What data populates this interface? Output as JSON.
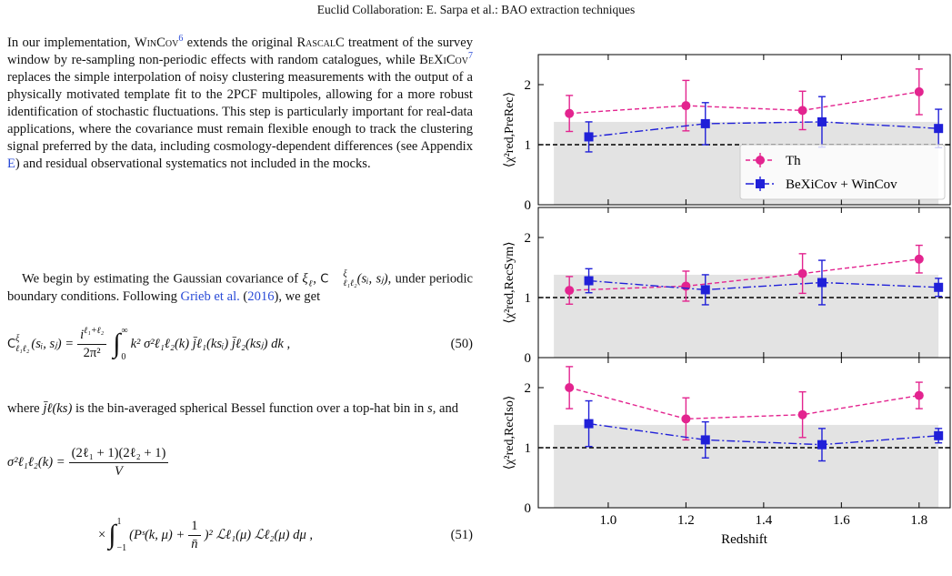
{
  "header": "Euclid Collaboration: E. Sarpa et al.: BAO extraction techniques",
  "paragraph1": [
    "In our implementation, ",
    "WinCov",
    "6",
    " extends the original ",
    "RascalC",
    " treatment of the survey window by re-sampling non-periodic effects with random catalogues, while ",
    "BeXiCov",
    "7",
    " replaces the simple interpolation of noisy clustering measurements with the output of a physically motivated template fit to the 2PCF multipoles, allowing for a more robust identification of stochastic fluctuations. This step is particularly important for real-data applications, where the covariance must remain flexible enough to track the clustering signal preferred by the data, including cosmology-dependent differences (see Appendix ",
    "E",
    ") and residual observational systematics not included in the mocks."
  ],
  "paragraph2": [
    "We begin by estimating the Gaussian covariance of ",
    "ξ",
    "ℓ",
    ", ",
    "C",
    "ξ",
    "ℓ₁ℓ₂",
    "(sᵢ, sⱼ)",
    ", under periodic boundary conditions. Following ",
    "Grieb et al.",
    " (",
    "2016",
    "), we get"
  ],
  "equation50": {
    "lhs": "C",
    "lhs_sup": "ξ",
    "lhs_sub": "ℓ₁ℓ₂",
    "lhs_args": "(sᵢ, sⱼ) =",
    "num": "i",
    "num_sup": "ℓ₁+ℓ₂",
    "den": "2π²",
    "lower": "0",
    "upper": "∞",
    "body": "k² σ²ℓ₁ℓ₂(k) j̄ℓ₁(ksᵢ) j̄ℓ₂(ksⱼ) dk ,",
    "number": "(50)"
  },
  "paragraph3": [
    "where ",
    "j̄ℓ(ks)",
    " is the bin-averaged spherical Bessel function over a top-hat bin in ",
    "s",
    ", and"
  ],
  "equation51": {
    "lhs": "σ²ℓ₁ℓ₂(k) =",
    "num": "(2ℓ₁ + 1)(2ℓ₂ + 1)",
    "den": "V",
    "times": "×",
    "lower": "−1",
    "upper": "1",
    "body_start": "(Pˢ(k, μ) +",
    "inner_num": "1",
    "inner_den": "n̄",
    "body_end": ")² ℒℓ₁(μ) ℒℓ₂(μ) dμ ,",
    "number": "(51)"
  },
  "chart_data": [
    {
      "type": "line",
      "ylabel": "⟨χ²red,PreRec⟩",
      "xlim": [
        0.82,
        1.88
      ],
      "ylim": [
        0,
        2.5
      ],
      "yticks": [
        0,
        1,
        2
      ],
      "xticks": [
        {
          "value": 1,
          "label": "1.0"
        },
        1.2,
        1.4,
        1.6,
        1.8
      ],
      "shaded_region": {
        "x": [
          0.86,
          1.85
        ],
        "y": [
          0,
          1.38
        ]
      },
      "reference_line": 1,
      "legend": "lower right",
      "series": [
        {
          "name": "Th",
          "color": "#e3248f",
          "marker": "circle",
          "dash": "5,3",
          "x": [
            0.9,
            1.2,
            1.5,
            1.8
          ],
          "values": [
            1.52,
            1.65,
            1.57,
            1.88
          ],
          "errors": [
            0.3,
            0.42,
            0.32,
            0.38
          ]
        },
        {
          "name": "BeXiCov + WinCov",
          "color": "#2020d8",
          "marker": "square",
          "dash": "9,3,2,3",
          "x": [
            0.95,
            1.25,
            1.55,
            1.85
          ],
          "values": [
            1.13,
            1.35,
            1.38,
            1.27
          ],
          "errors": [
            0.25,
            0.35,
            0.42,
            0.32
          ]
        }
      ]
    },
    {
      "type": "line",
      "ylabel": "⟨χ²red,RecSym⟩",
      "xlim": [
        0.82,
        1.88
      ],
      "ylim": [
        0,
        2.5
      ],
      "yticks": [
        0,
        1,
        2
      ],
      "xticks": [
        {
          "value": 1,
          "label": "1.0"
        },
        1.2,
        1.4,
        1.6,
        1.8
      ],
      "shaded_region": {
        "x": [
          0.86,
          1.85
        ],
        "y": [
          0,
          1.38
        ]
      },
      "reference_line": 1,
      "series": [
        {
          "color": "#e3248f",
          "marker": "circle",
          "dash": "5,3",
          "x": [
            0.9,
            1.2,
            1.5,
            1.8
          ],
          "values": [
            1.12,
            1.19,
            1.4,
            1.64
          ],
          "errors": [
            0.23,
            0.25,
            0.33,
            0.23
          ]
        },
        {
          "color": "#2020d8",
          "marker": "square",
          "dash": "9,3,2,3",
          "x": [
            0.95,
            1.25,
            1.55,
            1.85
          ],
          "values": [
            1.28,
            1.13,
            1.25,
            1.17
          ],
          "errors": [
            0.2,
            0.25,
            0.37,
            0.15
          ]
        }
      ]
    },
    {
      "type": "line",
      "ylabel": "⟨χ²red,RecIso⟩",
      "xlabel": "Redshift",
      "xlim": [
        0.82,
        1.88
      ],
      "ylim": [
        0,
        2.5
      ],
      "yticks": [
        0,
        1,
        2
      ],
      "xticks": [
        {
          "value": 1,
          "label": "1.0"
        },
        1.2,
        1.4,
        1.6,
        1.8
      ],
      "shaded_region": {
        "x": [
          0.86,
          1.85
        ],
        "y": [
          0,
          1.38
        ]
      },
      "reference_line": 1,
      "series": [
        {
          "color": "#e3248f",
          "marker": "circle",
          "dash": "5,3",
          "x": [
            0.9,
            1.2,
            1.5,
            1.8
          ],
          "values": [
            2.0,
            1.48,
            1.55,
            1.87
          ],
          "errors": [
            0.35,
            0.35,
            0.38,
            0.22
          ]
        },
        {
          "color": "#2020d8",
          "marker": "square",
          "dash": "9,3,2,3",
          "x": [
            0.95,
            1.25,
            1.55,
            1.85
          ],
          "values": [
            1.4,
            1.13,
            1.05,
            1.2
          ],
          "errors": [
            0.38,
            0.3,
            0.27,
            0.12
          ]
        }
      ]
    }
  ]
}
